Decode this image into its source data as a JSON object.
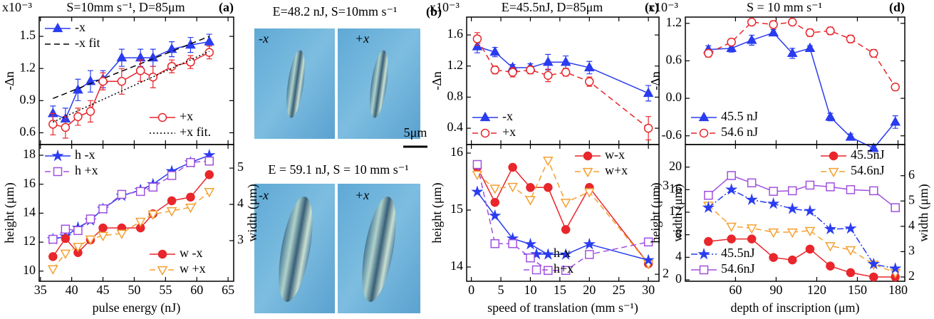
{
  "chart_data": [
    {
      "type": "line",
      "title": "S=10mm s⁻¹, D=85μm",
      "label": "(a)",
      "unit": "x10⁻³",
      "ylabel": "-Δn",
      "x": [
        37,
        39,
        41,
        43,
        45,
        48,
        51,
        53,
        56,
        59,
        62
      ],
      "xlim": [
        34.8,
        65.9
      ],
      "xticks": [
        35,
        40,
        45,
        50,
        55,
        60,
        65
      ],
      "ylim": [
        0.49,
        1.68
      ],
      "yticks": [
        0.6,
        0.9,
        1.2,
        1.5
      ],
      "series": [
        {
          "name": "-x",
          "color": "#2a3cf0",
          "marker": "triangle",
          "filled": true,
          "dash": "none",
          "legend": "upper left",
          "values": [
            0.78,
            0.73,
            1.0,
            1.08,
            1.1,
            1.3,
            1.3,
            1.3,
            1.38,
            1.42,
            1.45
          ],
          "errors": [
            0.07,
            0.1,
            0.1,
            0.1,
            0.08,
            0.08,
            0.08,
            0.08,
            0.07,
            0.07,
            0.07
          ]
        },
        {
          "name": "-x fit",
          "color": "#000000",
          "marker": "none",
          "filled": false,
          "dash": "dashed",
          "legend": "upper left",
          "x": [
            37,
            62
          ],
          "values": [
            0.92,
            1.5
          ]
        },
        {
          "name": "+x",
          "color": "#e8262b",
          "marker": "circle",
          "filled": false,
          "dash": "none",
          "legend": "lower right",
          "values": [
            0.68,
            0.65,
            0.75,
            0.8,
            1.08,
            1.08,
            1.18,
            1.12,
            1.22,
            1.26,
            1.35
          ],
          "errors": [
            0.1,
            0.1,
            0.08,
            0.1,
            0.08,
            0.12,
            0.1,
            0.1,
            0.06,
            0.06,
            0.06
          ]
        },
        {
          "name": "+x fit.",
          "color": "#000000",
          "marker": "none",
          "filled": false,
          "dash": "dotted",
          "legend": "lower right",
          "x": [
            37,
            62
          ],
          "values": [
            0.7,
            1.36
          ]
        }
      ]
    },
    {
      "type": "line",
      "xlabel": "pulse energy (nJ)",
      "ylabel": "height (μm)",
      "y2label": "width (μm)",
      "ycolor": "#2a3cf0",
      "y2color": "#e8262b",
      "x": [
        37,
        39,
        41,
        43,
        45,
        48,
        51,
        53,
        56,
        59,
        62
      ],
      "xlim": [
        34.8,
        65.9
      ],
      "xticks": [
        35,
        40,
        45,
        50,
        55,
        60,
        65
      ],
      "ylim": [
        9.3,
        18.74
      ],
      "yticks": [
        10,
        12,
        14,
        16,
        18
      ],
      "y2lim": [
        1.88,
        5.65
      ],
      "y2ticks": [
        3,
        4,
        5
      ],
      "series": [
        {
          "name": "h -x",
          "color": "#2a3cf0",
          "marker": "star",
          "filled": true,
          "dash": "none",
          "legend": "upper left",
          "values": [
            12.2,
            12.4,
            13.0,
            13.5,
            14.3,
            15.2,
            15.6,
            16.0,
            16.9,
            17.5,
            18.0
          ]
        },
        {
          "name": "h +x",
          "color": "#a050e0",
          "marker": "square",
          "filled": false,
          "dash": "dashed",
          "legend": "upper left",
          "values": [
            12.2,
            12.9,
            12.8,
            13.6,
            14.3,
            15.3,
            15.5,
            15.8,
            16.6,
            17.5,
            17.6
          ]
        },
        {
          "name": "w -x",
          "color": "#e8262b",
          "marker": "circle",
          "filled": true,
          "dash": "none",
          "legend": "lower right",
          "axis": "y2",
          "values": [
            2.56,
            3.06,
            2.67,
            3.02,
            3.35,
            3.35,
            3.35,
            3.74,
            4.1,
            4.2,
            4.82
          ]
        },
        {
          "name": "w +x",
          "color": "#f5a030",
          "marker": "triangle-down",
          "filled": false,
          "dash": "dashed",
          "legend": "lower right",
          "axis": "y2",
          "values": [
            2.22,
            2.65,
            2.84,
            3.04,
            3.14,
            3.2,
            3.53,
            3.73,
            3.82,
            3.92,
            4.35
          ]
        }
      ]
    },
    {
      "type": "line",
      "title": "E=45.5nJ, D=85μm",
      "label": "(c)",
      "unit": "x10⁻³",
      "ylabel": "-Δn",
      "x": [
        1,
        4,
        7,
        10,
        13,
        16,
        20,
        30
      ],
      "xlim": [
        -0.8,
        31.8
      ],
      "xticks": [
        0,
        5,
        10,
        15,
        20,
        25,
        30
      ],
      "ylim": [
        0.19,
        1.83
      ],
      "yticks": [
        0.4,
        0.8,
        1.2,
        1.6
      ],
      "series": [
        {
          "name": "-x",
          "color": "#2a3cf0",
          "marker": "triangle",
          "filled": true,
          "dash": "none",
          "legend": "lower left",
          "values": [
            1.45,
            1.38,
            1.18,
            1.18,
            1.25,
            1.25,
            1.18,
            0.85
          ],
          "errors": [
            0.08,
            0.06,
            0.04,
            0.05,
            0.1,
            0.08,
            0.08,
            0.1
          ]
        },
        {
          "name": "+x",
          "color": "#e8262b",
          "marker": "circle",
          "filled": false,
          "dash": "dashed",
          "legend": "lower left",
          "values": [
            1.55,
            1.15,
            1.12,
            1.15,
            1.08,
            1.12,
            1.0,
            0.4
          ],
          "errors": [
            0.08,
            0.05,
            0.06,
            0.05,
            0.08,
            0.05,
            0.06,
            0.15
          ]
        }
      ]
    },
    {
      "type": "line",
      "xlabel": "speed of translation (mm s⁻¹)",
      "ylabel": "height (μm)",
      "y2label": "width (μm)",
      "ycolor": "#2a3cf0",
      "y2color": "#e8262b",
      "x": [
        1,
        4,
        7,
        10,
        13,
        16,
        20,
        30
      ],
      "xlim": [
        -0.8,
        31.8
      ],
      "xticks": [
        0,
        5,
        10,
        15,
        20,
        25,
        30
      ],
      "ylim": [
        13.75,
        16.15
      ],
      "yticks": [
        14,
        15,
        16
      ],
      "y2lim": [
        1.92,
        3.48
      ],
      "y2ticks": [
        2,
        3
      ],
      "series": [
        {
          "name": "w-x",
          "color": "#e8262b",
          "marker": "circle",
          "filled": true,
          "dash": "none",
          "legend": "upper right",
          "axis": "y2",
          "values": [
            3.22,
            2.82,
            3.22,
            2.99,
            2.99,
            2.51,
            2.99,
            2.12
          ]
        },
        {
          "name": "w+x",
          "color": "#f5a030",
          "marker": "triangle-down",
          "filled": false,
          "dash": "dashed",
          "legend": "upper right",
          "axis": "y2",
          "values": [
            3.14,
            2.98,
            3.0,
            2.85,
            3.3,
            2.82,
            2.94,
            2.12
          ]
        },
        {
          "name": "h-x",
          "color": "#2a3cf0",
          "marker": "star",
          "filled": true,
          "dash": "none",
          "legend": "lower center",
          "values": [
            15.32,
            14.9,
            14.5,
            14.4,
            14.22,
            14.22,
            14.4,
            14.12
          ]
        },
        {
          "name": "h+x",
          "color": "#a050e0",
          "marker": "square",
          "filled": false,
          "dash": "dashed",
          "legend": "lower center",
          "values": [
            15.8,
            14.41,
            14.41,
            14.16,
            13.94,
            13.94,
            14.22,
            14.44
          ]
        }
      ]
    },
    {
      "type": "line",
      "title": "S = 10 mm s⁻¹",
      "label": "(d)",
      "unit": "x10⁻³",
      "ylabel": "-Δn",
      "x": [
        40,
        57,
        72,
        88,
        102,
        115,
        130,
        145,
        162,
        178
      ],
      "xlim": [
        23,
        185
      ],
      "xticks": [
        60,
        90,
        120,
        150,
        180
      ],
      "ylim": [
        -0.74,
        1.3
      ],
      "yticks": [
        -0.6,
        {
          "value": 0,
          "label": "0.0"
        },
        0.6,
        1.2
      ],
      "series": [
        {
          "name": "45.5 nJ",
          "color": "#2a3cf0",
          "marker": "triangle",
          "filled": true,
          "dash": "none",
          "legend": "lower left",
          "values": [
            0.78,
            0.8,
            0.93,
            1.05,
            0.72,
            0.8,
            -0.3,
            -0.62,
            -0.8,
            -0.38
          ],
          "errors": [
            0.06,
            0.06,
            0.08,
            0.05,
            0.08,
            0.04,
            0.06,
            0.05,
            0.05,
            0.1
          ]
        },
        {
          "name": "54.6 nJ",
          "color": "#e8262b",
          "marker": "circle",
          "filled": false,
          "dash": "dashed",
          "legend": "lower left",
          "values": [
            0.72,
            0.9,
            1.22,
            1.18,
            1.22,
            1.05,
            1.08,
            0.95,
            0.72,
            0.18
          ],
          "errors": [
            0.06,
            0.05,
            0.04,
            0.06,
            0.04,
            0.06,
            0.06,
            0.06,
            0.06,
            0.03
          ]
        }
      ]
    },
    {
      "type": "line",
      "xlabel": "depth of inscription (μm)",
      "ylabel": "height (μm)",
      "y2label": "width (μm)",
      "ycolor": "#2a3cf0",
      "y2color": "#e8262b",
      "x": [
        40,
        57,
        72,
        88,
        102,
        115,
        130,
        145,
        162,
        178
      ],
      "xlim": [
        23,
        185
      ],
      "xticks": [
        60,
        90,
        120,
        150,
        180
      ],
      "ylim": [
        -0.25,
        24
      ],
      "yticks": [
        0,
        4,
        8,
        12,
        16,
        20
      ],
      "y2lim": [
        1.83,
        7.23
      ],
      "y2ticks": [
        2,
        3,
        4,
        5,
        6
      ],
      "series": [
        {
          "name": "45.5nJ",
          "color": "#e8262b",
          "marker": "circle",
          "filled": true,
          "dash": "none",
          "legend": "upper right",
          "axis": "y2",
          "values": [
            3.4,
            3.5,
            3.5,
            2.77,
            2.67,
            3.1,
            2.43,
            2.17,
            2.0,
            2.0
          ]
        },
        {
          "name": "54.6nJ",
          "color": "#f5a030",
          "marker": "triangle-down",
          "filled": false,
          "dash": "dashed",
          "legend": "upper right",
          "axis": "y2",
          "values": [
            4.83,
            4.0,
            3.93,
            3.77,
            3.77,
            3.83,
            3.23,
            3.07,
            2.5,
            2.17
          ]
        },
        {
          "name": "45.5nJ",
          "color": "#2a3cf0",
          "marker": "star",
          "filled": true,
          "dash": "dashdot",
          "legend": "lower left",
          "values": [
            12.8,
            16.0,
            14.2,
            13.5,
            12.6,
            12.2,
            9.0,
            9.1,
            2.8,
            2.0
          ]
        },
        {
          "name": "54.6nJ",
          "color": "#a050e0",
          "marker": "square",
          "filled": false,
          "dash": "none",
          "legend": "lower left",
          "values": [
            15.0,
            18.5,
            17.2,
            15.7,
            15.8,
            16.8,
            16.5,
            16.0,
            15.8,
            12.8
          ]
        }
      ]
    }
  ],
  "panel_b": {
    "label": "(b)",
    "title_top": "E=48.2 nJ, S=10mm s⁻¹",
    "title_bottom": "E = 59.1 nJ, S = 10 mm s⁻¹",
    "scale_bar": "5μm",
    "images": [
      {
        "label": "-x"
      },
      {
        "label": "+x"
      },
      {
        "label": "-x"
      },
      {
        "label": "+x"
      }
    ]
  }
}
